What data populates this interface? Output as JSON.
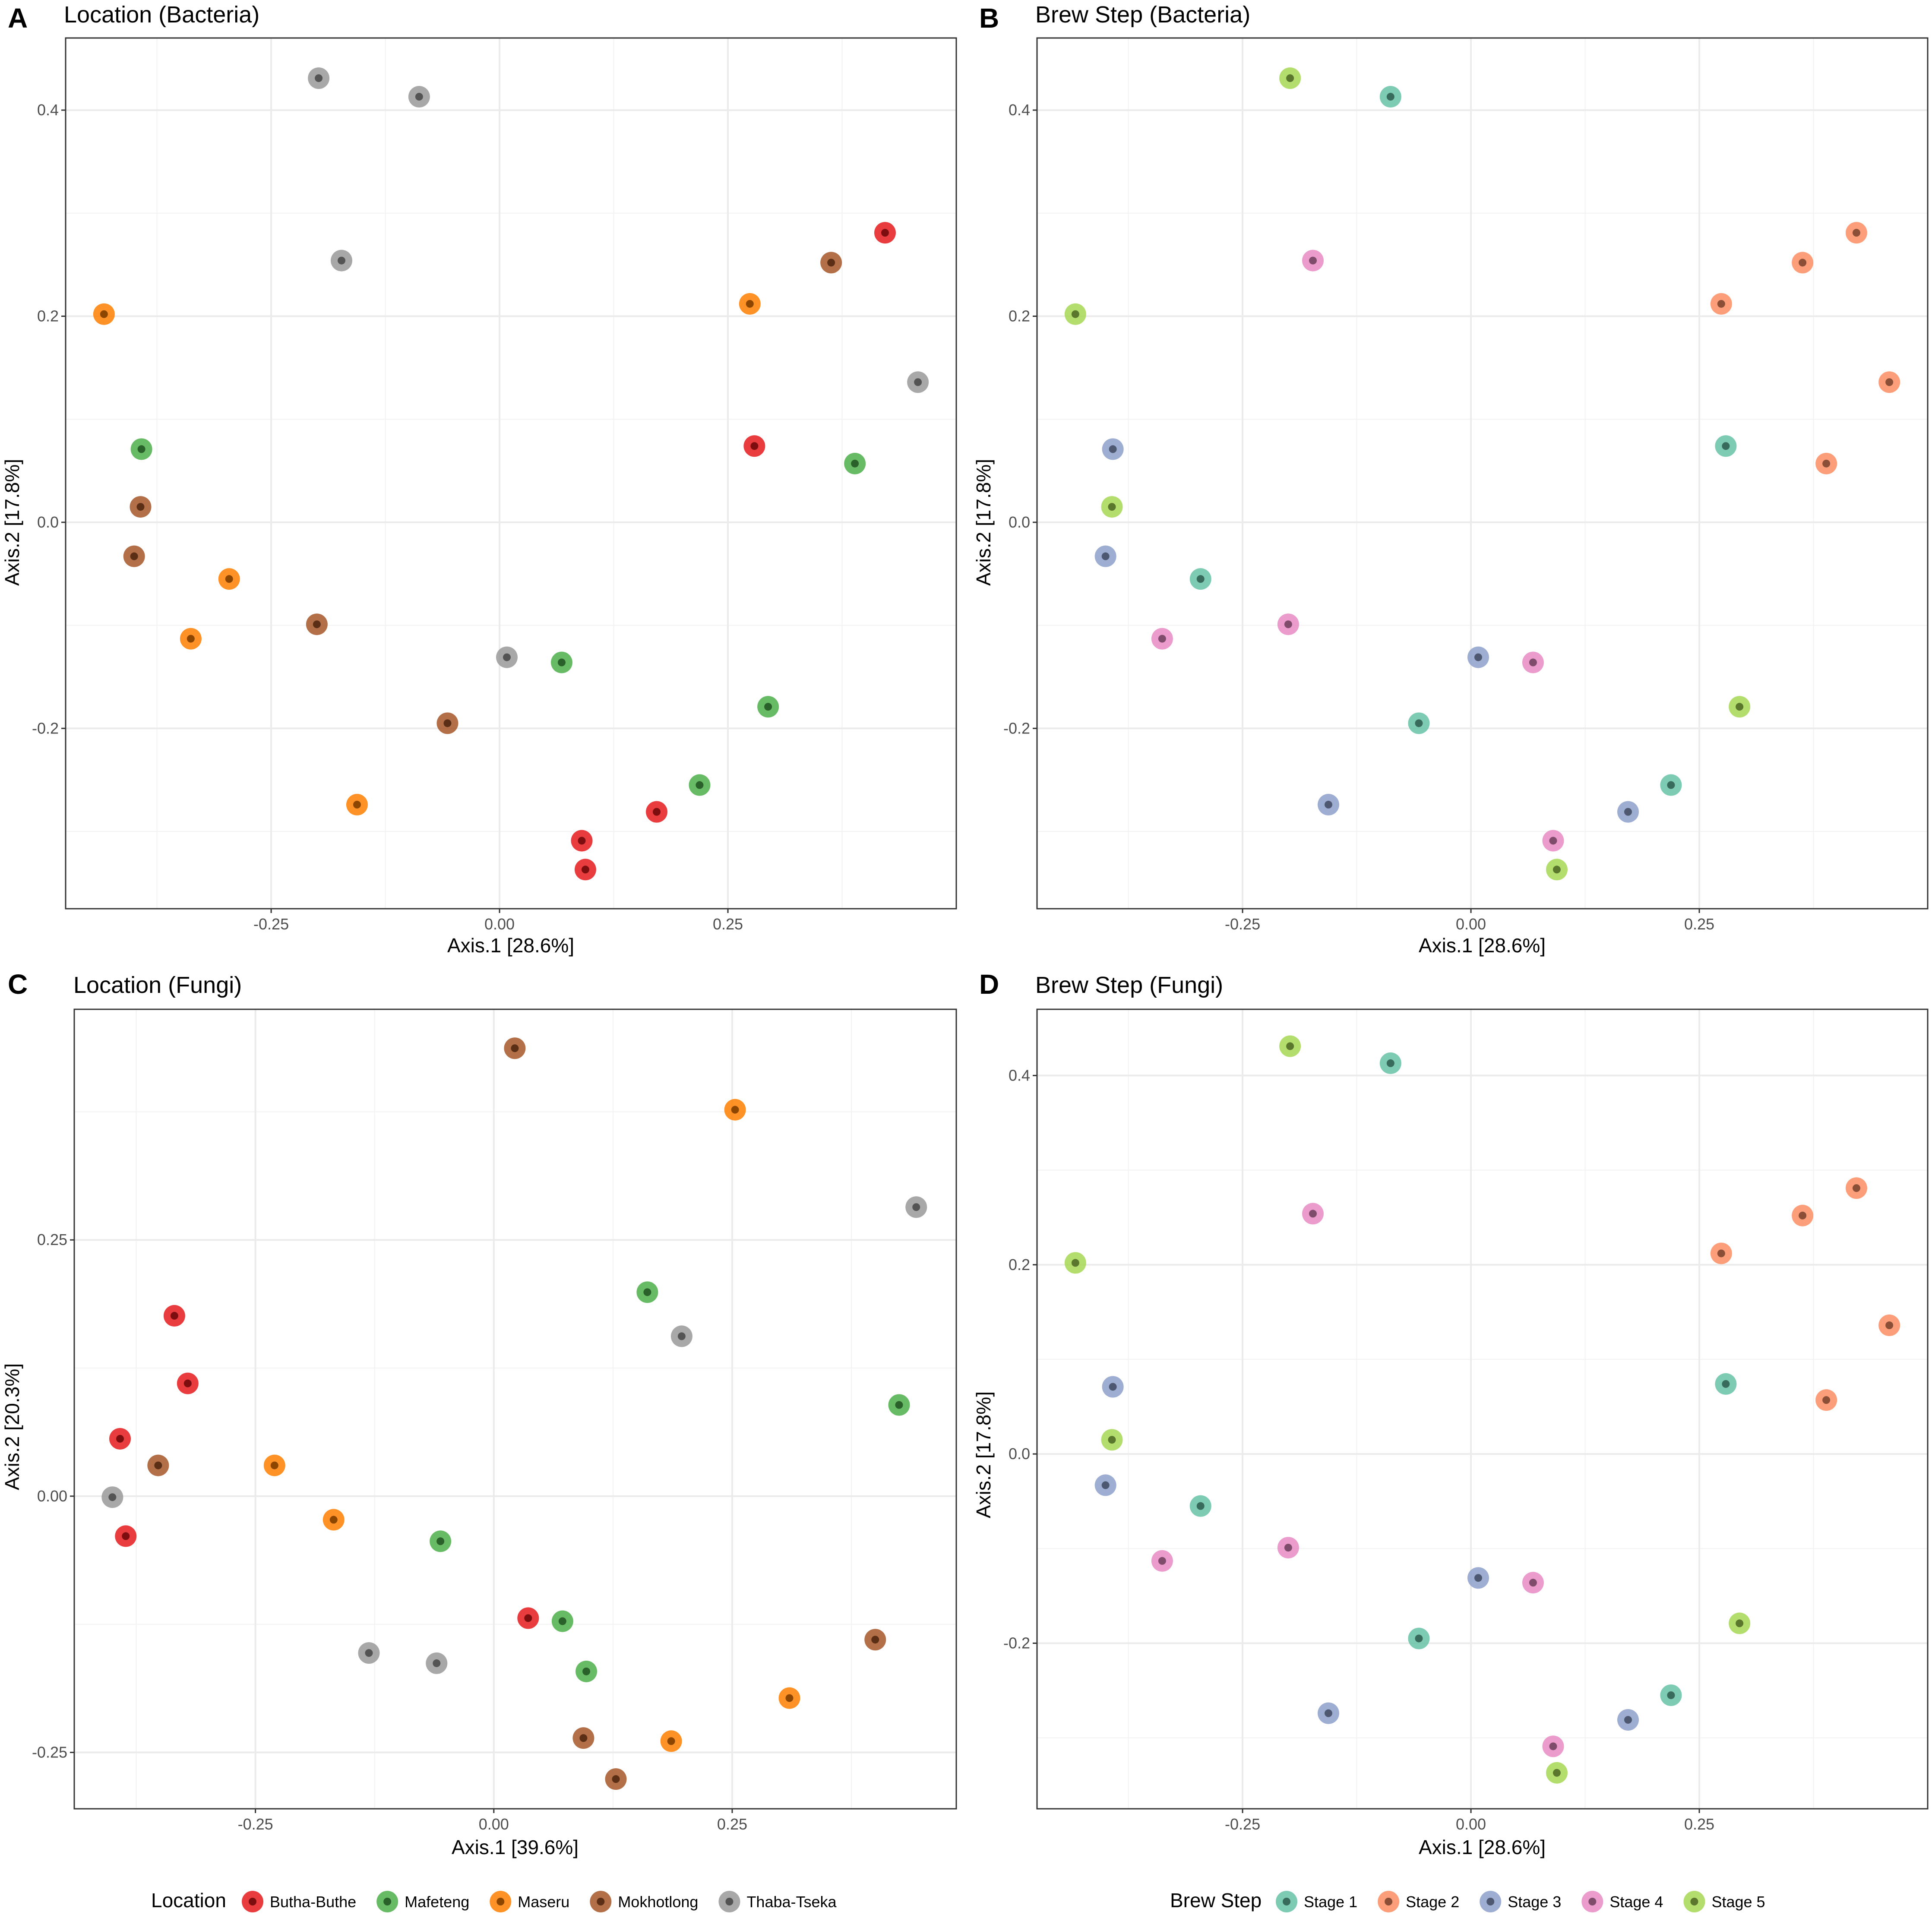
{
  "chart_data": [
    {
      "panel": "A",
      "type": "scatter",
      "title": "Location (Bacteria)",
      "xlabel": "Axis.1   [28.6%]",
      "ylabel": "Axis.2   [17.8%]",
      "xlim": [
        -0.475,
        0.5
      ],
      "ylim": [
        -0.375,
        0.47
      ],
      "xticks": [
        -0.25,
        0.0,
        0.25
      ],
      "xtick_labels": [
        "-0.25",
        "0.00",
        "0.25"
      ],
      "yticks": [
        -0.2,
        0.0,
        0.2,
        0.4
      ],
      "ytick_labels": [
        "-0.2",
        "0.0",
        "0.2",
        "0.4"
      ],
      "legend_key": "location",
      "points": [
        {
          "x": -0.198,
          "y": 0.431,
          "group": "Thaba-Tseka"
        },
        {
          "x": -0.088,
          "y": 0.413,
          "group": "Thaba-Tseka"
        },
        {
          "x": -0.173,
          "y": 0.254,
          "group": "Thaba-Tseka"
        },
        {
          "x": 0.458,
          "y": 0.136,
          "group": "Thaba-Tseka"
        },
        {
          "x": 0.008,
          "y": -0.131,
          "group": "Thaba-Tseka"
        },
        {
          "x": 0.422,
          "y": 0.281,
          "group": "Butha-Buthe"
        },
        {
          "x": 0.279,
          "y": 0.074,
          "group": "Butha-Buthe"
        },
        {
          "x": 0.172,
          "y": -0.281,
          "group": "Butha-Buthe"
        },
        {
          "x": 0.09,
          "y": -0.309,
          "group": "Butha-Buthe"
        },
        {
          "x": 0.094,
          "y": -0.337,
          "group": "Butha-Buthe"
        },
        {
          "x": 0.363,
          "y": 0.252,
          "group": "Mokhotlong"
        },
        {
          "x": -0.393,
          "y": 0.015,
          "group": "Mokhotlong"
        },
        {
          "x": -0.4,
          "y": -0.033,
          "group": "Mokhotlong"
        },
        {
          "x": -0.2,
          "y": -0.099,
          "group": "Mokhotlong"
        },
        {
          "x": -0.057,
          "y": -0.195,
          "group": "Mokhotlong"
        },
        {
          "x": 0.274,
          "y": 0.212,
          "group": "Maseru"
        },
        {
          "x": -0.433,
          "y": 0.202,
          "group": "Maseru"
        },
        {
          "x": -0.296,
          "y": -0.055,
          "group": "Maseru"
        },
        {
          "x": -0.338,
          "y": -0.113,
          "group": "Maseru"
        },
        {
          "x": -0.156,
          "y": -0.274,
          "group": "Maseru"
        },
        {
          "x": -0.392,
          "y": 0.071,
          "group": "Mafeteng"
        },
        {
          "x": 0.389,
          "y": 0.057,
          "group": "Mafeteng"
        },
        {
          "x": 0.068,
          "y": -0.136,
          "group": "Mafeteng"
        },
        {
          "x": 0.294,
          "y": -0.179,
          "group": "Mafeteng"
        },
        {
          "x": 0.219,
          "y": -0.255,
          "group": "Mafeteng"
        }
      ]
    },
    {
      "panel": "B",
      "type": "scatter",
      "title": "Brew Step (Bacteria)",
      "xlabel": "Axis.1   [28.6%]",
      "ylabel": "Axis.2   [17.8%]",
      "xlim": [
        -0.475,
        0.5
      ],
      "ylim": [
        -0.375,
        0.47
      ],
      "xticks": [
        -0.25,
        0.0,
        0.25
      ],
      "xtick_labels": [
        "-0.25",
        "0.00",
        "0.25"
      ],
      "yticks": [
        -0.2,
        0.0,
        0.2,
        0.4
      ],
      "ytick_labels": [
        "-0.2",
        "0.0",
        "0.2",
        "0.4"
      ],
      "legend_key": "brew",
      "points": [
        {
          "x": -0.198,
          "y": 0.431,
          "group": "Stage 5"
        },
        {
          "x": -0.088,
          "y": 0.413,
          "group": "Stage 1"
        },
        {
          "x": -0.173,
          "y": 0.254,
          "group": "Stage 4"
        },
        {
          "x": 0.458,
          "y": 0.136,
          "group": "Stage 2"
        },
        {
          "x": 0.008,
          "y": -0.131,
          "group": "Stage 3"
        },
        {
          "x": 0.422,
          "y": 0.281,
          "group": "Stage 2"
        },
        {
          "x": 0.279,
          "y": 0.074,
          "group": "Stage 1"
        },
        {
          "x": 0.172,
          "y": -0.281,
          "group": "Stage 3"
        },
        {
          "x": 0.09,
          "y": -0.309,
          "group": "Stage 4"
        },
        {
          "x": 0.094,
          "y": -0.337,
          "group": "Stage 5"
        },
        {
          "x": 0.363,
          "y": 0.252,
          "group": "Stage 2"
        },
        {
          "x": -0.393,
          "y": 0.015,
          "group": "Stage 5"
        },
        {
          "x": -0.4,
          "y": -0.033,
          "group": "Stage 3"
        },
        {
          "x": -0.2,
          "y": -0.099,
          "group": "Stage 4"
        },
        {
          "x": -0.057,
          "y": -0.195,
          "group": "Stage 1"
        },
        {
          "x": 0.274,
          "y": 0.212,
          "group": "Stage 2"
        },
        {
          "x": -0.433,
          "y": 0.202,
          "group": "Stage 5"
        },
        {
          "x": -0.296,
          "y": -0.055,
          "group": "Stage 1"
        },
        {
          "x": -0.338,
          "y": -0.113,
          "group": "Stage 4"
        },
        {
          "x": -0.156,
          "y": -0.274,
          "group": "Stage 3"
        },
        {
          "x": -0.392,
          "y": 0.071,
          "group": "Stage 3"
        },
        {
          "x": 0.389,
          "y": 0.057,
          "group": "Stage 2"
        },
        {
          "x": 0.068,
          "y": -0.136,
          "group": "Stage 4"
        },
        {
          "x": 0.294,
          "y": -0.179,
          "group": "Stage 5"
        },
        {
          "x": 0.219,
          "y": -0.255,
          "group": "Stage 1"
        }
      ]
    },
    {
      "panel": "C",
      "type": "scatter",
      "title": "Location (Fungi)",
      "xlabel": "Axis.1   [39.6%]",
      "ylabel": "Axis.2   [20.3%]",
      "xlim": [
        -0.44,
        0.485
      ],
      "ylim": [
        -0.305,
        0.475
      ],
      "xticks": [
        -0.25,
        0.0,
        0.25
      ],
      "xtick_labels": [
        "-0.25",
        "0.00",
        "0.25"
      ],
      "yticks": [
        -0.25,
        0.0,
        0.25
      ],
      "ytick_labels": [
        "-0.25",
        "0.00",
        "0.25"
      ],
      "legend_key": "location",
      "points": [
        {
          "x": 0.022,
          "y": 0.437,
          "group": "Mokhotlong"
        },
        {
          "x": 0.253,
          "y": 0.377,
          "group": "Maseru"
        },
        {
          "x": 0.443,
          "y": 0.282,
          "group": "Thaba-Tseka"
        },
        {
          "x": 0.161,
          "y": 0.199,
          "group": "Mafeteng"
        },
        {
          "x": 0.197,
          "y": 0.156,
          "group": "Thaba-Tseka"
        },
        {
          "x": -0.335,
          "y": 0.176,
          "group": "Butha-Buthe"
        },
        {
          "x": -0.321,
          "y": 0.11,
          "group": "Butha-Buthe"
        },
        {
          "x": 0.425,
          "y": 0.089,
          "group": "Mafeteng"
        },
        {
          "x": -0.392,
          "y": 0.056,
          "group": "Butha-Buthe"
        },
        {
          "x": -0.352,
          "y": 0.03,
          "group": "Mokhotlong"
        },
        {
          "x": -0.23,
          "y": 0.03,
          "group": "Maseru"
        },
        {
          "x": -0.4,
          "y": -0.001,
          "group": "Thaba-Tseka"
        },
        {
          "x": -0.386,
          "y": -0.039,
          "group": "Butha-Buthe"
        },
        {
          "x": -0.168,
          "y": -0.023,
          "group": "Maseru"
        },
        {
          "x": -0.056,
          "y": -0.044,
          "group": "Mafeteng"
        },
        {
          "x": 0.036,
          "y": -0.119,
          "group": "Butha-Buthe"
        },
        {
          "x": 0.072,
          "y": -0.122,
          "group": "Mafeteng"
        },
        {
          "x": -0.131,
          "y": -0.153,
          "group": "Thaba-Tseka"
        },
        {
          "x": -0.06,
          "y": -0.163,
          "group": "Thaba-Tseka"
        },
        {
          "x": 0.097,
          "y": -0.171,
          "group": "Mafeteng"
        },
        {
          "x": 0.4,
          "y": -0.14,
          "group": "Mokhotlong"
        },
        {
          "x": 0.31,
          "y": -0.197,
          "group": "Maseru"
        },
        {
          "x": 0.186,
          "y": -0.239,
          "group": "Maseru"
        },
        {
          "x": 0.094,
          "y": -0.236,
          "group": "Mokhotlong"
        },
        {
          "x": 0.128,
          "y": -0.276,
          "group": "Mokhotlong"
        }
      ]
    },
    {
      "panel": "D",
      "type": "scatter",
      "title": "Brew Step (Fungi)",
      "xlabel": "Axis.1   [28.6%]",
      "ylabel": "Axis.2   [17.8%]",
      "xlim": [
        -0.475,
        0.5
      ],
      "ylim": [
        -0.375,
        0.47
      ],
      "xticks": [
        -0.25,
        0.0,
        0.25
      ],
      "xtick_labels": [
        "-0.25",
        "0.00",
        "0.25"
      ],
      "yticks": [
        -0.2,
        0.0,
        0.2,
        0.4
      ],
      "ytick_labels": [
        "-0.2",
        "0.0",
        "0.2",
        "0.4"
      ],
      "legend_key": "brew",
      "points": [
        {
          "x": -0.198,
          "y": 0.431,
          "group": "Stage 5"
        },
        {
          "x": -0.088,
          "y": 0.413,
          "group": "Stage 1"
        },
        {
          "x": -0.173,
          "y": 0.254,
          "group": "Stage 4"
        },
        {
          "x": 0.458,
          "y": 0.136,
          "group": "Stage 2"
        },
        {
          "x": 0.008,
          "y": -0.131,
          "group": "Stage 3"
        },
        {
          "x": 0.422,
          "y": 0.281,
          "group": "Stage 2"
        },
        {
          "x": 0.279,
          "y": 0.074,
          "group": "Stage 1"
        },
        {
          "x": 0.172,
          "y": -0.281,
          "group": "Stage 3"
        },
        {
          "x": 0.09,
          "y": -0.309,
          "group": "Stage 4"
        },
        {
          "x": 0.094,
          "y": -0.337,
          "group": "Stage 5"
        },
        {
          "x": 0.363,
          "y": 0.252,
          "group": "Stage 2"
        },
        {
          "x": -0.393,
          "y": 0.015,
          "group": "Stage 5"
        },
        {
          "x": -0.4,
          "y": -0.033,
          "group": "Stage 3"
        },
        {
          "x": -0.2,
          "y": -0.099,
          "group": "Stage 4"
        },
        {
          "x": -0.057,
          "y": -0.195,
          "group": "Stage 1"
        },
        {
          "x": 0.274,
          "y": 0.212,
          "group": "Stage 2"
        },
        {
          "x": -0.433,
          "y": 0.202,
          "group": "Stage 5"
        },
        {
          "x": -0.296,
          "y": -0.055,
          "group": "Stage 1"
        },
        {
          "x": -0.338,
          "y": -0.113,
          "group": "Stage 4"
        },
        {
          "x": -0.156,
          "y": -0.274,
          "group": "Stage 3"
        },
        {
          "x": -0.392,
          "y": 0.071,
          "group": "Stage 3"
        },
        {
          "x": 0.389,
          "y": 0.057,
          "group": "Stage 2"
        },
        {
          "x": 0.068,
          "y": -0.136,
          "group": "Stage 4"
        },
        {
          "x": 0.294,
          "y": -0.179,
          "group": "Stage 5"
        },
        {
          "x": 0.219,
          "y": -0.255,
          "group": "Stage 1"
        }
      ]
    }
  ],
  "legends": {
    "location": {
      "title": "Location",
      "items": [
        {
          "label": "Butha-Buthe",
          "color": "#e41a1c"
        },
        {
          "label": "Mafeteng",
          "color": "#4daf4a"
        },
        {
          "label": "Maseru",
          "color": "#ff7f00"
        },
        {
          "label": "Mokhotlong",
          "color": "#a65628"
        },
        {
          "label": "Thaba-Tseka",
          "color": "#999999"
        }
      ]
    },
    "brew": {
      "title": "Brew Step",
      "items": [
        {
          "label": "Stage 1",
          "color": "#66c2a5"
        },
        {
          "label": "Stage 2",
          "color": "#fc8d62"
        },
        {
          "label": "Stage 3",
          "color": "#8da0cb"
        },
        {
          "label": "Stage 4",
          "color": "#e78ac3"
        },
        {
          "label": "Stage 5",
          "color": "#a6d854"
        }
      ]
    }
  }
}
